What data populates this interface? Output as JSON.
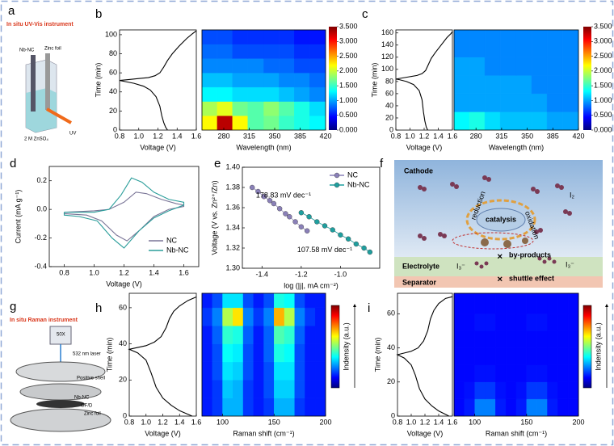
{
  "figure": {
    "panel_labels": [
      "a",
      "b",
      "c",
      "d",
      "e",
      "f",
      "g",
      "h",
      "i"
    ],
    "a": {
      "title": "In situ UV-Vis instrument",
      "labels": [
        "Nb-NC",
        "Zinc foil",
        "2 M ZnSO₄",
        "UV"
      ]
    },
    "f": {
      "labels": [
        "Cathode",
        "I₂",
        "reduction",
        "catalysis",
        "oxidation",
        "by-products",
        "Electrolyte",
        "I₃⁻",
        "I₃⁻",
        "shuttle effect",
        "Separator"
      ]
    },
    "g": {
      "title": "In situ Raman instrument",
      "labels": [
        "50X",
        "532 nm laser",
        "Positive shell",
        "Nb-NC",
        "GF/D",
        "Zinc foil"
      ]
    }
  },
  "chart_data": [
    {
      "type": "line",
      "xlabel": "Voltage (V)",
      "ylabel": "Time (min)",
      "xlim": [
        0.8,
        1.6
      ],
      "xticks": [
        0.8,
        {
          "value": 1,
          "label": "1.0"
        },
        1.2,
        1.4,
        1.6
      ],
      "ylim": [
        0,
        105
      ],
      "yticks": [
        0,
        20,
        40,
        60,
        80,
        100
      ],
      "series": [
        {
          "color": "#000000",
          "x": [
            1.3,
            1.28,
            1.26,
            1.24,
            1.22,
            1.18,
            1.12,
            1.05,
            0.95,
            0.85,
            0.8,
            0.8,
            0.9,
            1.0,
            1.1,
            1.17,
            1.22,
            1.26,
            1.3,
            1.35,
            1.42,
            1.5,
            1.56,
            1.6
          ],
          "values": [
            0,
            3,
            8,
            15,
            25,
            35,
            42,
            46,
            49,
            51,
            52,
            52,
            53,
            54,
            55,
            57,
            60,
            66,
            73,
            80,
            88,
            96,
            101,
            104
          ]
        }
      ]
    },
    {
      "type": "heatmap",
      "xlabel": "Wavelength (nm)",
      "xlim": [
        250,
        420
      ],
      "xticks": [
        280,
        315,
        350,
        385,
        420
      ],
      "ylim": [
        0,
        105
      ],
      "xbins": [
        250,
        271,
        292,
        313,
        335,
        356,
        377,
        398,
        420
      ],
      "ybins": [
        0,
        15,
        30,
        45,
        60,
        75,
        90,
        105
      ],
      "z": [
        [
          2.2,
          3.3,
          2.2,
          1.6,
          1.7,
          1.5,
          1.4,
          1.3
        ],
        [
          1.9,
          2.1,
          1.7,
          1.6,
          1.8,
          1.6,
          1.4,
          1.2
        ],
        [
          1.3,
          1.3,
          1.2,
          1.2,
          1.2,
          1.1,
          1.0,
          0.9
        ],
        [
          1.1,
          1.1,
          1.0,
          1.0,
          1.0,
          0.9,
          0.9,
          0.8
        ],
        [
          0.9,
          0.9,
          0.9,
          0.9,
          0.8,
          0.8,
          0.7,
          0.7
        ],
        [
          0.8,
          0.8,
          0.7,
          0.7,
          0.7,
          0.7,
          0.6,
          0.6
        ],
        [
          0.7,
          0.7,
          0.6,
          0.6,
          0.6,
          0.6,
          0.5,
          0.5
        ]
      ],
      "clim": [
        0,
        3.5
      ],
      "cticks": [
        {
          "value": 0,
          "label": "0.000"
        },
        {
          "value": 0.5,
          "label": "0.500"
        },
        {
          "value": 1,
          "label": "1.000"
        },
        {
          "value": 1.5,
          "label": "1.500"
        },
        {
          "value": 2,
          "label": "2.000"
        },
        {
          "value": 2.5,
          "label": "2.500"
        },
        {
          "value": 3,
          "label": "3.000"
        },
        {
          "value": 3.5,
          "label": "3.500"
        }
      ]
    },
    {
      "type": "line",
      "xlabel": "Voltage (V)",
      "ylabel": "Time (min)",
      "xlim": [
        0.8,
        1.6
      ],
      "xticks": [
        0.8,
        {
          "value": 1,
          "label": "1.0"
        },
        1.2,
        1.4,
        1.6
      ],
      "ylim": [
        0,
        165
      ],
      "yticks": [
        0,
        20,
        40,
        60,
        80,
        100,
        120,
        140,
        160
      ],
      "series": [
        {
          "color": "#000000",
          "x": [
            1.25,
            1.23,
            1.21,
            1.19,
            1.17,
            1.13,
            1.05,
            0.95,
            0.85,
            0.8,
            0.8,
            0.9,
            1.0,
            1.1,
            1.17,
            1.22,
            1.26,
            1.3,
            1.36,
            1.44,
            1.52,
            1.58,
            1.6
          ],
          "values": [
            0,
            5,
            15,
            30,
            50,
            65,
            75,
            80,
            83,
            84,
            84,
            86,
            88,
            90,
            93,
            98,
            108,
            118,
            128,
            140,
            152,
            159,
            162
          ]
        }
      ]
    },
    {
      "type": "heatmap",
      "xlabel": "Wavelength (nm)",
      "xlim": [
        250,
        420
      ],
      "xticks": [
        280,
        315,
        350,
        385,
        420
      ],
      "ylim": [
        0,
        165
      ],
      "xbins": [
        250,
        271,
        292,
        313,
        335,
        356,
        377,
        398,
        420
      ],
      "ybins": [
        0,
        30,
        60,
        90,
        120,
        165
      ],
      "z": [
        [
          1.3,
          1.4,
          1.2,
          1.1,
          1.1,
          1.1,
          1.0,
          1.0
        ],
        [
          1.0,
          1.0,
          1.0,
          1.0,
          1.0,
          1.0,
          0.9,
          0.9
        ],
        [
          1.0,
          1.0,
          1.0,
          1.0,
          1.0,
          0.9,
          0.9,
          0.9
        ],
        [
          1.0,
          1.0,
          0.9,
          0.9,
          0.9,
          0.9,
          0.9,
          0.9
        ],
        [
          0.9,
          0.9,
          0.9,
          0.9,
          0.9,
          0.9,
          0.9,
          0.9
        ]
      ],
      "clim": [
        0,
        3.5
      ],
      "cticks": [
        {
          "value": 0,
          "label": "0.000"
        },
        {
          "value": 0.5,
          "label": "0.500"
        },
        {
          "value": 1,
          "label": "1.000"
        },
        {
          "value": 1.5,
          "label": "1.500"
        },
        {
          "value": 2,
          "label": "2.000"
        },
        {
          "value": 2.5,
          "label": "2.500"
        },
        {
          "value": 3,
          "label": "3.000"
        },
        {
          "value": 3.5,
          "label": "3.500"
        }
      ]
    },
    {
      "type": "line",
      "xlabel": "Voltage (V)",
      "ylabel": "Current (mA g⁻¹)",
      "xlim": [
        0.7,
        1.7
      ],
      "xticks": [
        0.8,
        {
          "value": 1,
          "label": "1.0"
        },
        1.2,
        1.4,
        1.6
      ],
      "ylim": [
        -0.4,
        0.3
      ],
      "yticks": [
        -0.4,
        -0.2,
        {
          "value": 0,
          "label": "0.0"
        },
        0.2
      ],
      "legend": "lower right",
      "series": [
        {
          "name": "NC",
          "color": "#7a7597",
          "x": [
            0.8,
            1.0,
            1.1,
            1.2,
            1.28,
            1.35,
            1.45,
            1.55,
            1.6,
            1.6,
            1.5,
            1.4,
            1.3,
            1.22,
            1.15,
            1.05,
            0.95,
            0.8,
            0.8
          ],
          "values": [
            -0.02,
            -0.01,
            0.0,
            0.05,
            0.12,
            0.11,
            0.07,
            0.04,
            0.03,
            0.02,
            0.0,
            -0.05,
            -0.15,
            -0.22,
            -0.18,
            -0.08,
            -0.04,
            -0.03,
            -0.02
          ]
        },
        {
          "name": "Nb-NC",
          "color": "#2a9d9a",
          "x": [
            0.8,
            1.0,
            1.1,
            1.18,
            1.25,
            1.32,
            1.4,
            1.5,
            1.6,
            1.6,
            1.5,
            1.4,
            1.3,
            1.2,
            1.12,
            1.02,
            0.9,
            0.8,
            0.8
          ],
          "values": [
            -0.02,
            -0.02,
            0.0,
            0.1,
            0.22,
            0.19,
            0.12,
            0.07,
            0.05,
            0.03,
            -0.01,
            -0.06,
            -0.15,
            -0.27,
            -0.2,
            -0.08,
            -0.05,
            -0.04,
            -0.02
          ]
        }
      ]
    },
    {
      "type": "line",
      "marker": "circle",
      "xlabel": "log (|j|, mA cm⁻²)",
      "ylabel": "Voltage (V vs. Zn²⁺/Zn)",
      "xlim": [
        -1.5,
        -0.8
      ],
      "xticks": [
        -1.4,
        -1.2,
        {
          "value": -1,
          "label": "-1.0"
        }
      ],
      "ylim": [
        1.3,
        1.4
      ],
      "yticks": [
        {
          "value": 1.3,
          "label": "1.30"
        },
        1.32,
        1.34,
        1.36,
        1.38,
        {
          "value": 1.4,
          "label": "1.40"
        }
      ],
      "legend": "upper right",
      "annotations": [
        "178.83 mV dec⁻¹",
        "107.58 mV dec⁻¹"
      ],
      "series": [
        {
          "name": "NC",
          "color": "#8a80b8",
          "x": [
            -1.45,
            -1.42,
            -1.39,
            -1.36,
            -1.34,
            -1.31,
            -1.28,
            -1.26,
            -1.23,
            -1.2,
            -1.17
          ],
          "values": [
            1.38,
            1.376,
            1.371,
            1.367,
            1.364,
            1.359,
            1.354,
            1.351,
            1.346,
            1.341,
            1.337
          ]
        },
        {
          "name": "Nb-NC",
          "color": "#1f9f9f",
          "x": [
            -1.2,
            -1.16,
            -1.12,
            -1.08,
            -1.04,
            -1.0,
            -0.96,
            -0.92,
            -0.88,
            -0.85
          ],
          "values": [
            1.355,
            1.351,
            1.346,
            1.342,
            1.338,
            1.333,
            1.329,
            1.324,
            1.32,
            1.316
          ]
        }
      ]
    },
    {
      "type": "line",
      "xlabel": "Voltage (V)",
      "ylabel": "Time (min)",
      "xlim": [
        0.8,
        1.6
      ],
      "xticks": [
        0.8,
        {
          "value": 1,
          "label": "1.0"
        },
        1.2,
        1.4,
        1.6
      ],
      "ylim": [
        0,
        68
      ],
      "yticks": [
        0,
        20,
        40,
        60
      ],
      "series": [
        {
          "color": "#000000",
          "x": [
            1.55,
            1.5,
            1.4,
            1.3,
            1.2,
            1.12,
            1.06,
            1.0,
            0.9,
            0.8,
            0.8,
            0.9,
            1.0,
            1.1,
            1.18,
            1.24,
            1.28,
            1.33,
            1.4,
            1.5,
            1.6
          ],
          "values": [
            0,
            1,
            3,
            6,
            10,
            16,
            24,
            31,
            35,
            37,
            37,
            38,
            39,
            41,
            44,
            49,
            54,
            58,
            61,
            64,
            66
          ]
        }
      ]
    },
    {
      "type": "heatmap",
      "xlabel": "Raman shift (cm⁻¹)",
      "xlim": [
        80,
        200
      ],
      "xticks": [
        100,
        150,
        200
      ],
      "ylim": [
        0,
        68
      ],
      "clabel": "Indensity (a.u.)",
      "clim": [
        0,
        1
      ],
      "xbins": [
        80,
        90,
        100,
        110,
        120,
        130,
        140,
        150,
        160,
        170,
        180,
        190,
        200
      ],
      "ybins": [
        0,
        10,
        20,
        30,
        40,
        50,
        60,
        68
      ],
      "z": [
        [
          0.15,
          0.18,
          0.3,
          0.3,
          0.18,
          0.15,
          0.18,
          0.3,
          0.3,
          0.18,
          0.15,
          0.15
        ],
        [
          0.15,
          0.18,
          0.32,
          0.3,
          0.18,
          0.15,
          0.2,
          0.33,
          0.33,
          0.2,
          0.15,
          0.15
        ],
        [
          0.15,
          0.2,
          0.35,
          0.33,
          0.2,
          0.15,
          0.2,
          0.35,
          0.35,
          0.2,
          0.15,
          0.15
        ],
        [
          0.15,
          0.2,
          0.38,
          0.36,
          0.2,
          0.15,
          0.22,
          0.4,
          0.38,
          0.2,
          0.15,
          0.15
        ],
        [
          0.15,
          0.22,
          0.42,
          0.4,
          0.22,
          0.15,
          0.22,
          0.45,
          0.42,
          0.22,
          0.15,
          0.15
        ],
        [
          0.18,
          0.25,
          0.55,
          0.65,
          0.25,
          0.18,
          0.25,
          0.7,
          0.55,
          0.25,
          0.18,
          0.15
        ],
        [
          0.15,
          0.2,
          0.35,
          0.35,
          0.2,
          0.15,
          0.2,
          0.4,
          0.38,
          0.2,
          0.15,
          0.15
        ]
      ]
    },
    {
      "type": "line",
      "xlabel": "Voltage (V)",
      "ylabel": "Time (min)",
      "xlim": [
        0.8,
        1.6
      ],
      "xticks": [
        0.8,
        {
          "value": 1,
          "label": "1.0"
        },
        1.2,
        1.4,
        1.6
      ],
      "ylim": [
        0,
        72
      ],
      "yticks": [
        0,
        20,
        40,
        60
      ],
      "series": [
        {
          "color": "#000000",
          "x": [
            1.55,
            1.5,
            1.4,
            1.3,
            1.2,
            1.12,
            1.06,
            1.0,
            0.9,
            0.8,
            0.8,
            0.9,
            1.0,
            1.1,
            1.18,
            1.24,
            1.28,
            1.33,
            1.4,
            1.5,
            1.6
          ],
          "values": [
            0,
            1,
            3,
            6,
            10,
            16,
            24,
            30,
            34,
            36,
            36,
            37,
            38,
            40,
            44,
            50,
            57,
            62,
            66,
            69,
            70
          ]
        }
      ]
    },
    {
      "type": "heatmap",
      "xlabel": "Raman shift (cm⁻¹)",
      "xlim": [
        80,
        200
      ],
      "xticks": [
        100,
        150,
        200
      ],
      "ylim": [
        0,
        72
      ],
      "clabel": "Indensity (a.u.)",
      "clim": [
        0,
        1
      ],
      "xbins": [
        80,
        90,
        100,
        110,
        120,
        130,
        140,
        150,
        160,
        170,
        180,
        190,
        200
      ],
      "ybins": [
        0,
        10,
        20,
        30,
        40,
        50,
        60,
        72
      ],
      "z": [
        [
          0.13,
          0.15,
          0.25,
          0.25,
          0.15,
          0.13,
          0.15,
          0.25,
          0.25,
          0.15,
          0.13,
          0.13
        ],
        [
          0.13,
          0.14,
          0.18,
          0.18,
          0.14,
          0.13,
          0.14,
          0.18,
          0.18,
          0.14,
          0.13,
          0.13
        ],
        [
          0.13,
          0.13,
          0.14,
          0.14,
          0.13,
          0.13,
          0.13,
          0.14,
          0.14,
          0.13,
          0.13,
          0.13
        ],
        [
          0.13,
          0.13,
          0.13,
          0.13,
          0.13,
          0.13,
          0.13,
          0.13,
          0.13,
          0.13,
          0.13,
          0.13
        ],
        [
          0.13,
          0.13,
          0.13,
          0.13,
          0.13,
          0.13,
          0.13,
          0.13,
          0.13,
          0.13,
          0.13,
          0.13
        ],
        [
          0.13,
          0.13,
          0.14,
          0.14,
          0.13,
          0.13,
          0.13,
          0.14,
          0.14,
          0.13,
          0.13,
          0.13
        ],
        [
          0.13,
          0.13,
          0.13,
          0.13,
          0.13,
          0.13,
          0.13,
          0.13,
          0.13,
          0.13,
          0.13,
          0.13
        ]
      ]
    }
  ]
}
